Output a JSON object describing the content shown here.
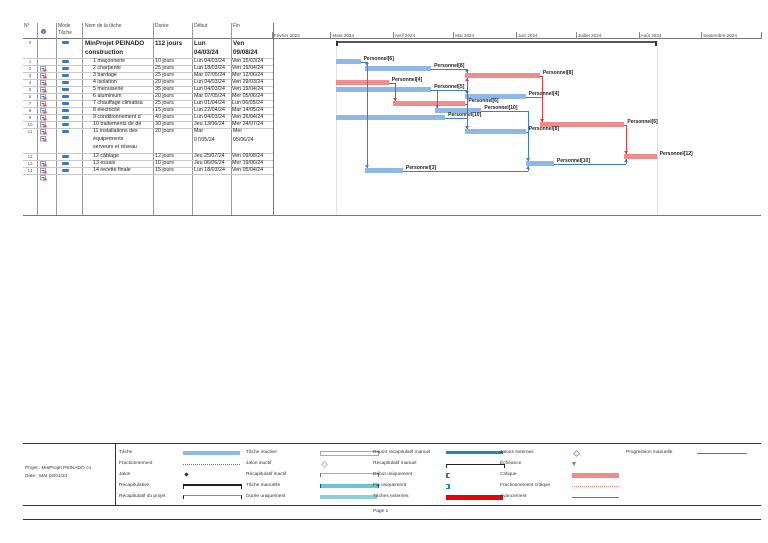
{
  "table": {
    "headers": {
      "num": "N°",
      "info_icon": "info-icon",
      "mode": "Mode Tâche",
      "name": "Nom de la tâche",
      "duration": "Durée",
      "start": "Début",
      "end": "Fin"
    },
    "rows": [
      {
        "id": "0",
        "name": "MinProjet PEINADO construction",
        "duration": "112 jours",
        "start": "Lun 04/03/24",
        "end": "Ven 09/08/24",
        "summary": true
      },
      {
        "id": "1",
        "name": "1 maçonnerie",
        "duration": "10 jours",
        "start": "Lun 04/03/24",
        "end": "Ven 15/03/24"
      },
      {
        "id": "2",
        "name": "2 charpente",
        "duration": "25 jours",
        "start": "Lun 18/03/24",
        "end": "Ven 19/04/24"
      },
      {
        "id": "3",
        "name": "3 bardage",
        "duration": "25 jours",
        "start": "Mar 07/05/24",
        "end": "Mer 12/06/24"
      },
      {
        "id": "4",
        "name": "4 isolation",
        "duration": "20 jours",
        "start": "Lun 04/03/24",
        "end": "Ven 29/03/24"
      },
      {
        "id": "5",
        "name": "5 menuiserie",
        "duration": "35 jours",
        "start": "Lun 04/03/24",
        "end": "Ven 19/04/24"
      },
      {
        "id": "6",
        "name": "6 aluminium",
        "duration": "20 jours",
        "start": "Mar 07/05/24",
        "end": "Mer 05/06/24"
      },
      {
        "id": "7",
        "name": "7 chauffage climatisa",
        "duration": "25 jours",
        "start": "Lun 01/04/24",
        "end": "Lun 06/05/24"
      },
      {
        "id": "8",
        "name": "8 électricité",
        "duration": "15 jours",
        "start": "Lun 22/04/24",
        "end": "Mar 14/05/24"
      },
      {
        "id": "9",
        "name": "9 conditionnement d",
        "duration": "40 jours",
        "start": "Lun 04/03/24",
        "end": "Ven 26/04/24"
      },
      {
        "id": "10",
        "name": "10 traitements de dé",
        "duration": "30 jours",
        "start": "Jeu 13/06/24",
        "end": "Mer 24/07/24"
      },
      {
        "id": "11",
        "name": "11 installations des équipements serveurs et réseau",
        "name_lines": [
          "11 installations des",
          "équipements",
          "serveurs et réseau"
        ],
        "duration": "20 jours",
        "start": "Mar 07/05/24",
        "end": "Mer 05/06/24",
        "start_lines": [
          "Mar",
          "07/05/24"
        ],
        "end_lines": [
          "Mer",
          "05/06/24"
        ]
      },
      {
        "id": "12",
        "name": "12 câblage",
        "duration": "12 jours",
        "start": "Jeu 25/07/24",
        "end": "Ven 09/08/24"
      },
      {
        "id": "13",
        "name": "13 essais",
        "duration": "10 jours",
        "start": "Jeu 06/06/24",
        "end": "Mer 19/06/24"
      },
      {
        "id": "14",
        "name": "14 recette finale",
        "duration": "15 jours",
        "start": "Lun 18/03/24",
        "end": "Ven 05/04/24"
      }
    ],
    "summary_name_lines": [
      "MinProjet PEINADO",
      "construction"
    ],
    "summary_start_lines": [
      "Lun",
      "04/03/24"
    ],
    "summary_end_lines": [
      "Ven",
      "09/08/24"
    ]
  },
  "timeline": {
    "months": [
      "Février 2024",
      "Mars 2024",
      "Avril 2024",
      "Mai 2024",
      "Juin 2024",
      "Juillet 2024",
      "Août 2024",
      "Septembre 2024"
    ],
    "bars": [
      {
        "row": 1,
        "start": "2024-03-04",
        "end": "2024-03-15",
        "critical": false,
        "label": "Personnel[6]"
      },
      {
        "row": 2,
        "start": "2024-03-18",
        "end": "2024-04-19",
        "critical": false,
        "label": "Personnel[8]"
      },
      {
        "row": 3,
        "start": "2024-05-07",
        "end": "2024-06-12",
        "critical": true,
        "label": "Personnel[8]"
      },
      {
        "row": 4,
        "start": "2024-03-04",
        "end": "2024-03-29",
        "critical": true,
        "label": "Personnel[4]"
      },
      {
        "row": 5,
        "start": "2024-03-04",
        "end": "2024-04-19",
        "critical": false,
        "label": "Personnel[5]"
      },
      {
        "row": 6,
        "start": "2024-05-07",
        "end": "2024-06-05",
        "critical": false,
        "label": "Personnel[4]"
      },
      {
        "row": 7,
        "start": "2024-04-01",
        "end": "2024-05-06",
        "critical": true,
        "label": "Personnel[6]"
      },
      {
        "row": 8,
        "start": "2024-04-22",
        "end": "2024-05-14",
        "critical": false,
        "label": "Personnel[10]"
      },
      {
        "row": 9,
        "start": "2024-03-04",
        "end": "2024-04-26",
        "critical": false,
        "label": "Personnel[10]"
      },
      {
        "row": 10,
        "start": "2024-06-13",
        "end": "2024-07-24",
        "critical": true,
        "label": "Personnel[6]"
      },
      {
        "row": 11,
        "start": "2024-05-07",
        "end": "2024-06-05",
        "critical": false,
        "label": "Personnel[8]"
      },
      {
        "row": 12,
        "start": "2024-07-25",
        "end": "2024-08-09",
        "critical": true,
        "label": "Personnel[12]"
      },
      {
        "row": 13,
        "start": "2024-06-06",
        "end": "2024-06-19",
        "critical": false,
        "label": "Personnel[10]"
      },
      {
        "row": 14,
        "start": "2024-03-18",
        "end": "2024-04-05",
        "critical": false,
        "label": "Personnel[3]"
      }
    ],
    "summary": {
      "start": "2024-03-04",
      "end": "2024-08-09"
    }
  },
  "legend": {
    "project": "Projet : MinProjet PEINADO co",
    "date": "Date : Mar 02/01/24",
    "col1": [
      "Tâche",
      "Fractionnement",
      "Jalon",
      "Récapitulative",
      "Récapitulatif du projet"
    ],
    "col2": [
      "Tâche inactive",
      "Jalon inactif",
      "Récapitulatif inactif",
      "Tâche manuelle",
      "Durée uniquement"
    ],
    "col3": [
      "Report récapitulatif manuel",
      "Récapitulatif manuel",
      "Début uniquement",
      "Fin uniquement",
      "Tâches externes"
    ],
    "col4": [
      "Jalons externes",
      "Échéance",
      "Critique",
      "Fractionnement critique",
      "Avancement"
    ],
    "col5": [
      "Progression manuelle"
    ],
    "colors": {
      "task": "#8db8e8",
      "critical": "#f28b8b",
      "manual": "#6cc6cf",
      "external": "#e8000b",
      "progress": "#3a7fd6",
      "deadline": "#5aa02c"
    },
    "page": "Page 1"
  }
}
